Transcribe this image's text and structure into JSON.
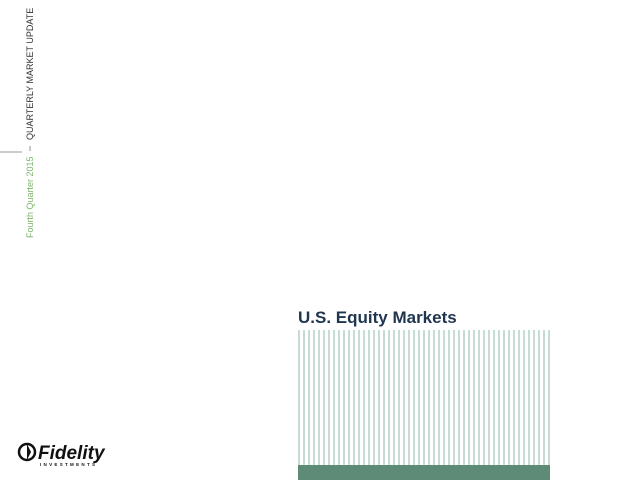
{
  "header": {
    "series": "QUARTERLY MARKET UPDATE",
    "period": "Fourth Quarter 2015"
  },
  "title": "U.S. Equity Markets",
  "logo": {
    "name": "Fidelity",
    "tagline": "INVESTMENTS"
  }
}
